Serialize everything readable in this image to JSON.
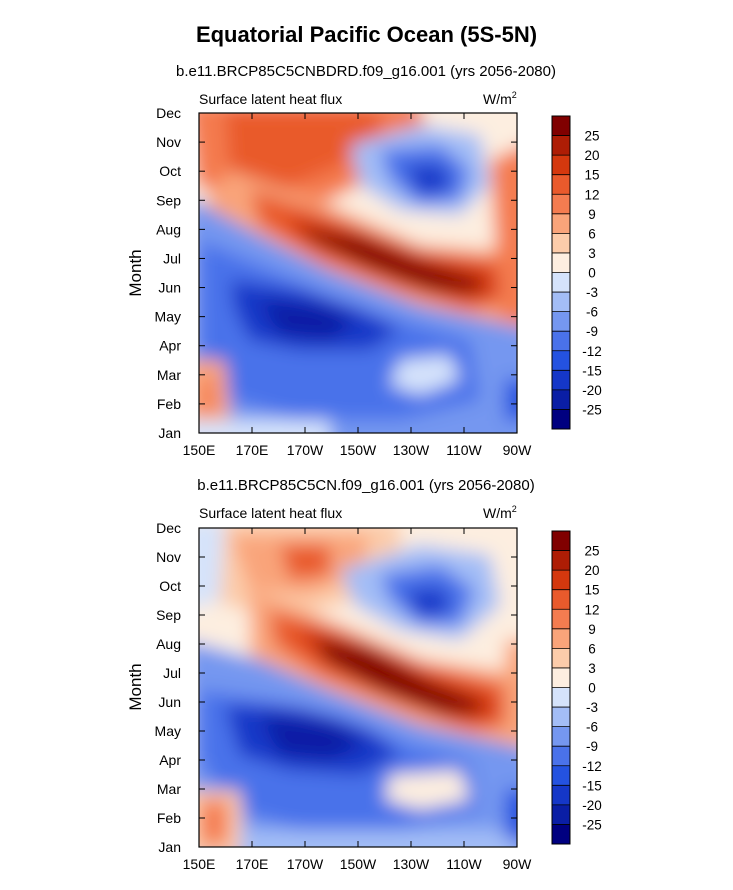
{
  "title": "Equatorial Pacific Ocean (5S-5N)",
  "chart_data": [
    {
      "type": "heatmap",
      "subtitle": "b.e11.BRCP85C5CNBDRD.f09_g16.001 (yrs 2056-2080)",
      "left_label": "Surface latent heat flux",
      "units": "W/m",
      "units_sup": "2",
      "ylabel": "Month",
      "x_ticks": [
        "150E",
        "170E",
        "170W",
        "150W",
        "130W",
        "110W",
        "90W"
      ],
      "y_ticks": [
        "Jan",
        "Feb",
        "Mar",
        "Apr",
        "May",
        "Jun",
        "Jul",
        "Aug",
        "Sep",
        "Oct",
        "Nov",
        "Dec"
      ],
      "xlim": [
        150,
        270
      ],
      "ylim": [
        1,
        12
      ]
    },
    {
      "type": "heatmap",
      "subtitle": "b.e11.BRCP85C5CN.f09_g16.001 (yrs 2056-2080)",
      "left_label": "Surface latent heat flux",
      "units": "W/m",
      "units_sup": "2",
      "ylabel": "Month",
      "x_ticks": [
        "150E",
        "170E",
        "170W",
        "150W",
        "130W",
        "110W",
        "90W"
      ],
      "y_ticks": [
        "Jan",
        "Feb",
        "Mar",
        "Apr",
        "May",
        "Jun",
        "Jul",
        "Aug",
        "Sep",
        "Oct",
        "Nov",
        "Dec"
      ],
      "xlim": [
        150,
        270
      ],
      "ylim": [
        1,
        12
      ]
    }
  ],
  "colorbar": {
    "labels": [
      "25",
      "20",
      "15",
      "12",
      "9",
      "6",
      "3",
      "0",
      "-3",
      "-6",
      "-9",
      "-12",
      "-15",
      "-20",
      "-25"
    ],
    "colors": [
      "#000080",
      "#0a1ea5",
      "#1537c8",
      "#2452e0",
      "#4a72ea",
      "#7597f0",
      "#a3bdf6",
      "#d5e3fb",
      "#fdeee0",
      "#fcccaa",
      "#f9a47a",
      "#f47c50",
      "#e95a2c",
      "#d4380e",
      "#ae1d05",
      "#800000"
    ]
  }
}
